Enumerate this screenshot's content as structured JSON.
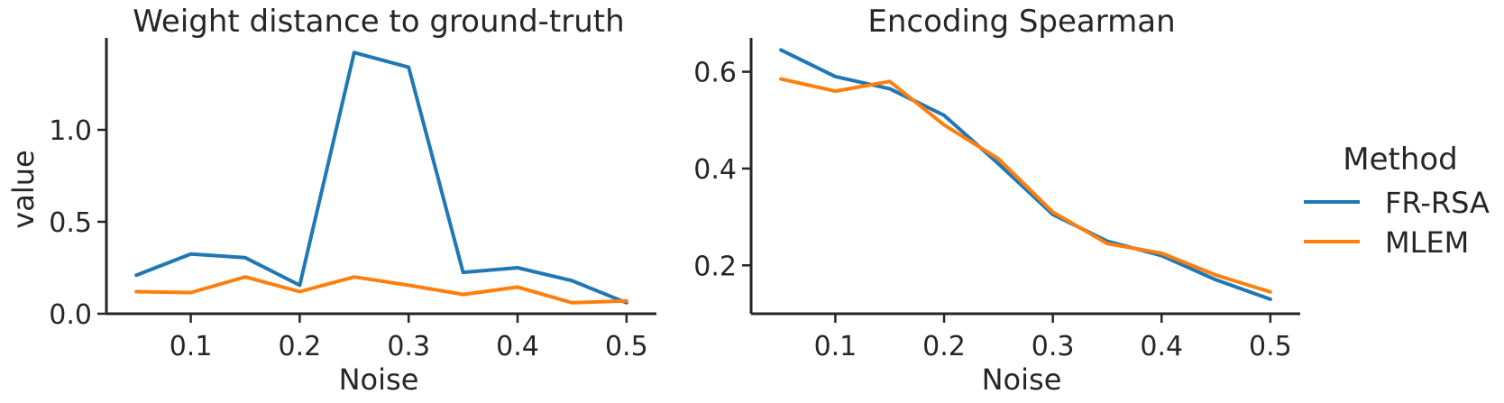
{
  "chart_data": [
    {
      "type": "line",
      "title": "Weight distance to ground-truth",
      "xlabel": "Noise",
      "ylabel": "value",
      "x": [
        0.05,
        0.1,
        0.15,
        0.2,
        0.25,
        0.3,
        0.35,
        0.4,
        0.45,
        0.5
      ],
      "xticks": [
        "0.1",
        "0.2",
        "0.3",
        "0.4",
        "0.5"
      ],
      "yticks": [
        "0.0",
        "0.5",
        "1.0"
      ],
      "xlim": [
        0.03,
        0.52
      ],
      "ylim": [
        0.0,
        1.5
      ],
      "grid": false,
      "series": [
        {
          "name": "FR-RSA",
          "values": [
            0.21,
            0.325,
            0.305,
            0.155,
            1.42,
            1.34,
            0.225,
            0.25,
            0.18,
            0.06
          ]
        },
        {
          "name": "MLEM",
          "values": [
            0.12,
            0.115,
            0.2,
            0.12,
            0.2,
            0.155,
            0.105,
            0.145,
            0.06,
            0.07
          ]
        }
      ]
    },
    {
      "type": "line",
      "title": "Encoding Spearman",
      "xlabel": "Noise",
      "ylabel": "",
      "x": [
        0.05,
        0.1,
        0.15,
        0.2,
        0.25,
        0.3,
        0.35,
        0.4,
        0.45,
        0.5
      ],
      "xticks": [
        "0.1",
        "0.2",
        "0.3",
        "0.4",
        "0.5"
      ],
      "yticks": [
        "0.2",
        "0.4",
        "0.6"
      ],
      "xlim": [
        0.03,
        0.52
      ],
      "ylim": [
        0.1,
        0.67
      ],
      "grid": false,
      "series": [
        {
          "name": "FR-RSA",
          "values": [
            0.645,
            0.59,
            0.565,
            0.51,
            0.41,
            0.305,
            0.25,
            0.22,
            0.17,
            0.13
          ]
        },
        {
          "name": "MLEM",
          "values": [
            0.585,
            0.56,
            0.58,
            0.49,
            0.42,
            0.31,
            0.245,
            0.225,
            0.18,
            0.145
          ]
        }
      ]
    }
  ],
  "legend": {
    "title": "Method",
    "placement": "right",
    "items": [
      {
        "label": "FR-RSA",
        "color": "#1f77b4"
      },
      {
        "label": "MLEM",
        "color": "#ff7f0e"
      }
    ]
  },
  "colors": {
    "FR-RSA": "#1f77b4",
    "MLEM": "#ff7f0e",
    "axis": "#262626"
  }
}
